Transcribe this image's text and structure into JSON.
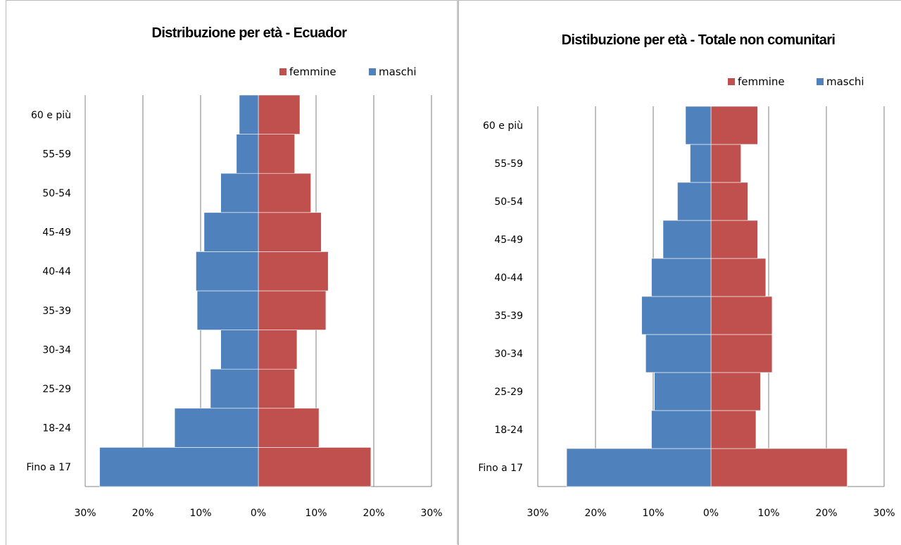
{
  "colors": {
    "femmine": "#c0504d",
    "maschi": "#4f81bd",
    "grid": "#7f7f7f"
  },
  "chart_data": [
    {
      "type": "bar",
      "orientation": "horizontal-population-pyramid",
      "title": "Distribuzione per età - Ecuador",
      "categories": [
        "Fino a 17",
        "18-24",
        "25-29",
        "30-34",
        "35-39",
        "40-44",
        "45-49",
        "50-54",
        "55-59",
        "60 e più"
      ],
      "series": [
        {
          "name": "femmine",
          "values": [
            19.5,
            10.5,
            6.3,
            6.7,
            11.7,
            12.1,
            10.9,
            9.1,
            6.3,
            7.2
          ]
        },
        {
          "name": "maschi",
          "values": [
            27.5,
            14.5,
            8.3,
            6.5,
            10.6,
            10.8,
            9.4,
            6.5,
            3.8,
            3.3
          ]
        }
      ],
      "xlim": [
        -30,
        30
      ],
      "xticks": [
        "30%",
        "20%",
        "10%",
        "0%",
        "10%",
        "20%",
        "30%"
      ],
      "legend": "top-right",
      "grid": true
    },
    {
      "type": "bar",
      "orientation": "horizontal-population-pyramid",
      "title": "Distibuzione per età - Totale non comunitari",
      "categories": [
        "Fino a 17",
        "18-24",
        "25-29",
        "30-34",
        "35-39",
        "40-44",
        "45-49",
        "50-54",
        "55-59",
        "60 e più"
      ],
      "series": [
        {
          "name": "femmine",
          "values": [
            23.6,
            7.8,
            8.6,
            10.6,
            10.6,
            9.5,
            8.1,
            6.4,
            5.2,
            8.1
          ]
        },
        {
          "name": "maschi",
          "values": [
            25.0,
            10.3,
            9.8,
            11.3,
            12.0,
            10.3,
            8.3,
            5.8,
            3.6,
            4.4
          ]
        }
      ],
      "xlim": [
        -30,
        30
      ],
      "xticks": [
        "30%",
        "20%",
        "10%",
        "0%",
        "10%",
        "20%",
        "30%"
      ],
      "legend": "top-right",
      "grid": true
    }
  ]
}
